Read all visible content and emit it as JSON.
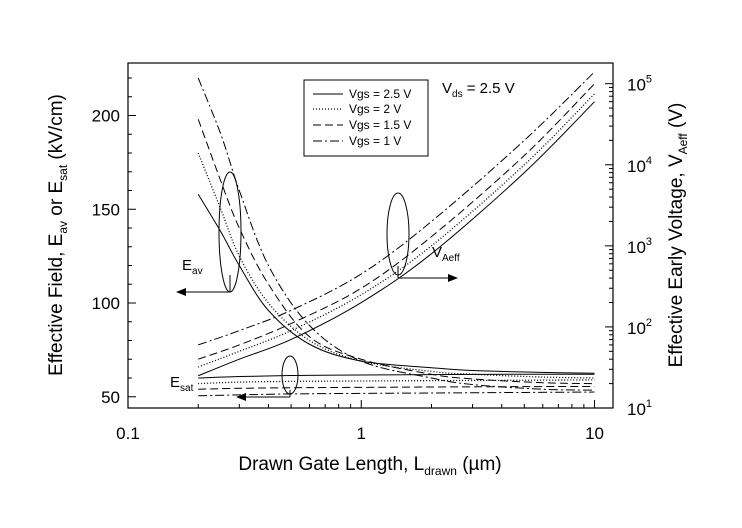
{
  "chart_data": {
    "type": "line",
    "x_axis": {
      "label": "Drawn Gate Length, L",
      "label_sub": "drawn",
      "label_unit_prefix": " (",
      "label_unit_mu": "µ",
      "label_unit_suffix": "m)",
      "scale": "log",
      "range": [
        0.1,
        12
      ],
      "ticks": [
        0.1,
        1,
        10
      ],
      "tick_labels": [
        "0.1",
        "1",
        "10"
      ]
    },
    "y_left": {
      "label_parts": [
        "Effective Field, E",
        "av",
        " or E",
        "sat",
        " (kV/cm)"
      ],
      "scale": "linear",
      "range": [
        44,
        228
      ],
      "ticks": [
        50,
        100,
        150,
        200
      ],
      "tick_labels": [
        "50",
        "100",
        "150",
        "200"
      ]
    },
    "y_right": {
      "label_parts": [
        "Effective Early Voltage, V",
        "Aeff",
        " (V)"
      ],
      "scale": "log",
      "range": [
        10,
        180000
      ],
      "ticks": [
        10,
        100,
        1000,
        10000,
        100000
      ],
      "tick_bases": [
        "10",
        "10",
        "10",
        "10",
        "10"
      ],
      "tick_exps": [
        "1",
        "2",
        "3",
        "4",
        "5"
      ]
    },
    "legend": {
      "placement": "top-center",
      "entries": [
        "Vgs = 2.5 V",
        "Vgs = 2 V",
        "Vgs = 1.5 V",
        "Vgs = 1 V"
      ]
    },
    "annotations": {
      "vds_main": "V",
      "vds_sub": "ds",
      "vds_rest": " = 2.5 V",
      "eav_main": "E",
      "eav_sub": "av",
      "esat_main": "E",
      "esat_sub": "sat",
      "vaeff_main": "V",
      "vaeff_sub": "Aeff"
    },
    "series": [
      {
        "name": "Vgs = 2.5 V",
        "style": "solid",
        "E_av": {
          "x": [
            0.2,
            0.25,
            0.3,
            0.4,
            0.6,
            1,
            2,
            3,
            6,
            10
          ],
          "y": [
            158,
            138,
            120,
            96,
            78,
            69,
            65.5,
            64,
            63,
            62.5
          ]
        },
        "E_sat": {
          "x": [
            0.2,
            0.3,
            0.5,
            1,
            2,
            5,
            10
          ],
          "y": [
            60,
            60.8,
            61.3,
            61.6,
            61.8,
            62,
            62
          ]
        },
        "V_Aeff": {
          "x": [
            0.2,
            0.3,
            0.5,
            1,
            2,
            5,
            10
          ],
          "y": [
            25,
            40,
            70,
            200,
            800,
            8000,
            60000
          ]
        }
      },
      {
        "name": "Vgs = 2 V",
        "style": "dotted",
        "E_av": {
          "x": [
            0.2,
            0.25,
            0.3,
            0.4,
            0.6,
            1,
            2,
            3,
            6,
            10
          ],
          "y": [
            180,
            150,
            125,
            100,
            80,
            69,
            63.5,
            62,
            60.5,
            60
          ]
        },
        "E_sat": {
          "x": [
            0.2,
            0.3,
            0.5,
            1,
            2,
            5,
            10
          ],
          "y": [
            57,
            57.8,
            58.2,
            58.4,
            58.6,
            58.8,
            59
          ]
        },
        "V_Aeff": {
          "x": [
            0.2,
            0.3,
            0.5,
            1,
            2,
            5,
            10
          ],
          "y": [
            32,
            50,
            90,
            250,
            1000,
            10000,
            75000
          ]
        }
      },
      {
        "name": "Vgs = 1.5 V",
        "style": "dashed",
        "E_av": {
          "x": [
            0.2,
            0.25,
            0.3,
            0.4,
            0.6,
            1,
            2,
            3,
            6,
            10
          ],
          "y": [
            198,
            165,
            140,
            110,
            82,
            70,
            62,
            59.5,
            57.5,
            57
          ]
        },
        "E_sat": {
          "x": [
            0.2,
            0.3,
            0.5,
            1,
            2,
            5,
            10
          ],
          "y": [
            54,
            54.5,
            54.8,
            55,
            55.2,
            55.4,
            55.5
          ]
        },
        "V_Aeff": {
          "x": [
            0.2,
            0.3,
            0.5,
            1,
            2,
            5,
            10
          ],
          "y": [
            40,
            60,
            110,
            300,
            1300,
            13000,
            100000
          ]
        }
      },
      {
        "name": "Vgs = 1 V",
        "style": "dashdot",
        "E_av": {
          "x": [
            0.2,
            0.25,
            0.3,
            0.4,
            0.6,
            1,
            2,
            3,
            6,
            10
          ],
          "y": [
            220,
            190,
            160,
            120,
            88,
            69,
            60,
            56.5,
            54,
            53.5
          ]
        },
        "E_sat": {
          "x": [
            0.2,
            0.3,
            0.5,
            1,
            2,
            5,
            10
          ],
          "y": [
            50.5,
            51,
            51.5,
            51.8,
            52,
            52.3,
            52.5
          ]
        },
        "V_Aeff": {
          "x": [
            0.2,
            0.3,
            0.5,
            1,
            2,
            5,
            10
          ],
          "y": [
            60,
            90,
            160,
            450,
            2000,
            20000,
            140000
          ]
        }
      }
    ],
    "grid": false
  }
}
